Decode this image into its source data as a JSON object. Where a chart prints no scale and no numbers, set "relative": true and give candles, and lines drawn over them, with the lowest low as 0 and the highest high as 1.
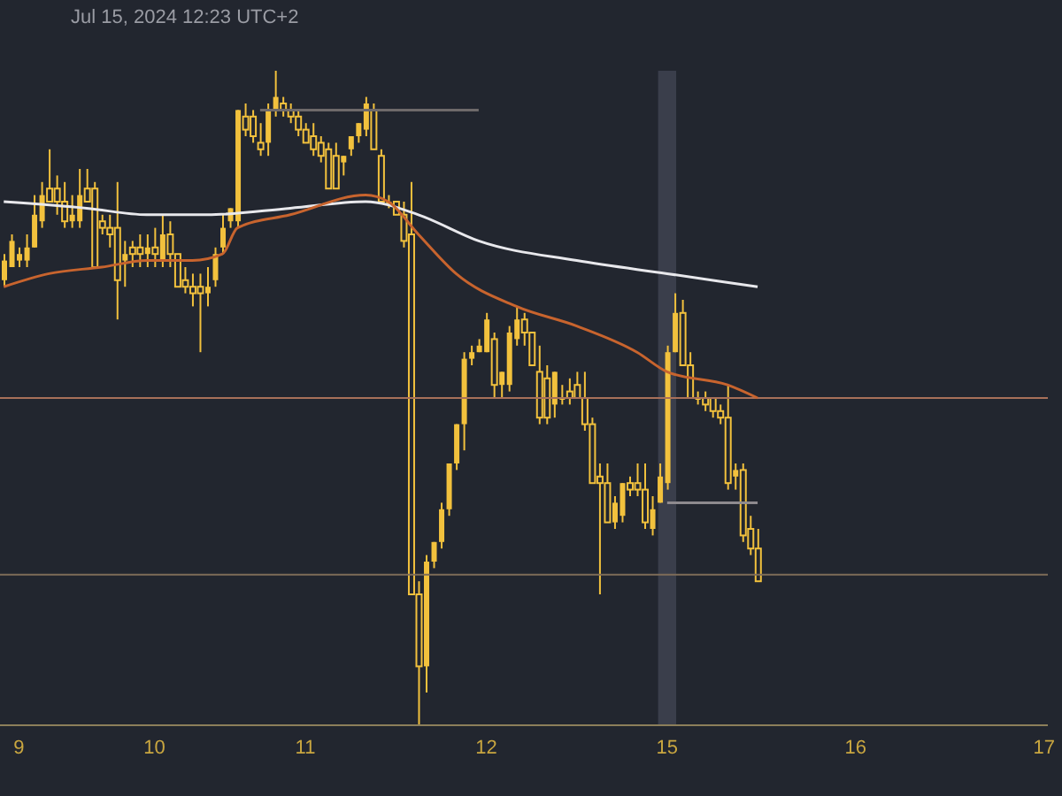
{
  "chart_data": {
    "type": "candlestick",
    "relative": true,
    "color": "#f2c13d",
    "annotations": [
      "Jul 15, 2024 12:23 UTC+2"
    ],
    "categories": [
      null,
      null,
      "9",
      null,
      null,
      null,
      null,
      null,
      null,
      null,
      null,
      null,
      null,
      null,
      null,
      null,
      null,
      null,
      null,
      null,
      "10",
      null,
      null,
      null,
      null,
      null,
      null,
      null,
      null,
      null,
      null,
      null,
      null,
      null,
      null,
      null,
      null,
      null,
      null,
      null,
      "11",
      null,
      null,
      null,
      null,
      null,
      null,
      null,
      null,
      null,
      null,
      null,
      null,
      null,
      null,
      null,
      null,
      null,
      null,
      null,
      null,
      null,
      null,
      null,
      "12",
      null,
      null,
      null,
      null,
      null,
      null,
      null,
      null,
      null,
      null,
      null,
      null,
      null,
      null,
      null,
      null,
      null,
      null,
      null,
      null,
      null,
      null,
      null,
      "15",
      null,
      null,
      null,
      null,
      null,
      null,
      null,
      null,
      null,
      null,
      null,
      null,
      null,
      null,
      null,
      null,
      null,
      null,
      null,
      null,
      null,
      null,
      null,
      null,
      "16",
      null,
      null,
      null,
      null,
      null,
      null,
      null,
      null,
      null,
      null,
      null,
      null,
      null,
      null,
      null,
      null,
      null,
      null,
      null,
      null,
      null,
      null,
      null,
      null,
      "17"
    ],
    "ohlc": [
      [
        0.68,
        0.72,
        0.67,
        0.71
      ],
      [
        0.7,
        0.75,
        0.7,
        0.74
      ],
      [
        0.71,
        0.73,
        0.7,
        0.72
      ],
      [
        0.71,
        0.75,
        0.7,
        0.73
      ],
      [
        0.73,
        0.81,
        0.73,
        0.78
      ],
      [
        0.77,
        0.83,
        0.76,
        0.81
      ],
      [
        0.82,
        0.88,
        0.8,
        0.8
      ],
      [
        0.82,
        0.84,
        0.78,
        0.8
      ],
      [
        0.8,
        0.83,
        0.76,
        0.77
      ],
      [
        0.77,
        0.81,
        0.76,
        0.78
      ],
      [
        0.77,
        0.85,
        0.76,
        0.81
      ],
      [
        0.82,
        0.85,
        0.8,
        0.8
      ],
      [
        0.82,
        0.83,
        0.7,
        0.7
      ],
      [
        0.77,
        0.78,
        0.75,
        0.76
      ],
      [
        0.76,
        0.78,
        0.73,
        0.75
      ],
      [
        0.76,
        0.83,
        0.62,
        0.68
      ],
      [
        0.71,
        0.74,
        0.67,
        0.72
      ],
      [
        0.73,
        0.74,
        0.7,
        0.72
      ],
      [
        0.73,
        0.75,
        0.7,
        0.72
      ],
      [
        0.72,
        0.75,
        0.7,
        0.73
      ],
      [
        0.73,
        0.76,
        0.7,
        0.72
      ],
      [
        0.71,
        0.78,
        0.7,
        0.75
      ],
      [
        0.75,
        0.77,
        0.7,
        0.72
      ],
      [
        0.72,
        0.72,
        0.67,
        0.67
      ],
      [
        0.68,
        0.7,
        0.66,
        0.67
      ],
      [
        0.67,
        0.69,
        0.64,
        0.66
      ],
      [
        0.67,
        0.69,
        0.57,
        0.66
      ],
      [
        0.66,
        0.7,
        0.64,
        0.67
      ],
      [
        0.68,
        0.73,
        0.67,
        0.72
      ],
      [
        0.73,
        0.78,
        0.72,
        0.76
      ],
      [
        0.77,
        0.79,
        0.76,
        0.79
      ],
      [
        0.77,
        0.94,
        0.76,
        0.94
      ],
      [
        0.93,
        0.95,
        0.9,
        0.91
      ],
      [
        0.93,
        0.94,
        0.89,
        0.9
      ],
      [
        0.89,
        0.92,
        0.87,
        0.88
      ],
      [
        0.89,
        0.95,
        0.87,
        0.94
      ],
      [
        0.94,
        1.0,
        0.93,
        0.96
      ],
      [
        0.95,
        0.96,
        0.93,
        0.94
      ],
      [
        0.94,
        0.95,
        0.92,
        0.93
      ],
      [
        0.93,
        0.94,
        0.9,
        0.91
      ],
      [
        0.91,
        0.92,
        0.89,
        0.89
      ],
      [
        0.9,
        0.92,
        0.87,
        0.88
      ],
      [
        0.89,
        0.9,
        0.86,
        0.87
      ],
      [
        0.88,
        0.89,
        0.82,
        0.82
      ],
      [
        0.87,
        0.89,
        0.82,
        0.82
      ],
      [
        0.86,
        0.87,
        0.84,
        0.87
      ],
      [
        0.88,
        0.9,
        0.87,
        0.9
      ],
      [
        0.9,
        0.92,
        0.89,
        0.92
      ],
      [
        0.91,
        0.96,
        0.9,
        0.95
      ],
      [
        0.94,
        0.95,
        0.88,
        0.88
      ],
      [
        0.87,
        0.88,
        0.8,
        0.8
      ],
      [
        0.8,
        0.81,
        0.79,
        0.8
      ],
      [
        0.8,
        0.8,
        0.78,
        0.78
      ],
      [
        0.78,
        0.8,
        0.73,
        0.74
      ],
      [
        0.75,
        0.83,
        0.2,
        0.2
      ],
      [
        0.2,
        0.22,
        0,
        0.09
      ],
      [
        0.09,
        0.26,
        0.05,
        0.25
      ],
      [
        0.25,
        0.28,
        0.24,
        0.28
      ],
      [
        0.28,
        0.34,
        0.27,
        0.33
      ],
      [
        0.33,
        0.4,
        0.32,
        0.4
      ],
      [
        0.4,
        0.46,
        0.39,
        0.46
      ],
      [
        0.46,
        0.57,
        0.42,
        0.56
      ],
      [
        0.56,
        0.58,
        0.55,
        0.57
      ],
      [
        0.57,
        0.59,
        0.57,
        0.58
      ],
      [
        0.57,
        0.63,
        0.57,
        0.62
      ],
      [
        0.59,
        0.6,
        0.5,
        0.52
      ],
      [
        0.52,
        0.54,
        0.5,
        0.54
      ],
      [
        0.52,
        0.61,
        0.51,
        0.6
      ],
      [
        0.59,
        0.64,
        0.58,
        0.62
      ],
      [
        0.62,
        0.63,
        0.58,
        0.6
      ],
      [
        0.6,
        0.6,
        0.55,
        0.55
      ],
      [
        0.54,
        0.58,
        0.46,
        0.47
      ],
      [
        0.53,
        0.55,
        0.46,
        0.47
      ],
      [
        0.49,
        0.54,
        0.47,
        0.54
      ],
      [
        0.5,
        0.52,
        0.49,
        0.5
      ],
      [
        0.51,
        0.53,
        0.49,
        0.5
      ],
      [
        0.52,
        0.54,
        0.5,
        0.5
      ],
      [
        0.5,
        0.54,
        0.45,
        0.46
      ],
      [
        0.46,
        0.47,
        0.37,
        0.37
      ],
      [
        0.38,
        0.4,
        0.2,
        0.37
      ],
      [
        0.37,
        0.4,
        0.31,
        0.31
      ],
      [
        0.31,
        0.35,
        0.3,
        0.34
      ],
      [
        0.32,
        0.37,
        0.31,
        0.37
      ],
      [
        0.37,
        0.38,
        0.35,
        0.36
      ],
      [
        0.37,
        0.4,
        0.35,
        0.36
      ],
      [
        0.36,
        0.4,
        0.3,
        0.31
      ],
      [
        0.3,
        0.35,
        0.29,
        0.33
      ],
      [
        0.34,
        0.4,
        0.34,
        0.38
      ],
      [
        0.37,
        0.58,
        0.36,
        0.57
      ],
      [
        0.57,
        0.66,
        0.57,
        0.63
      ],
      [
        0.63,
        0.65,
        0.55,
        0.55
      ],
      [
        0.55,
        0.57,
        0.5,
        0.5
      ],
      [
        0.5,
        0.51,
        0.49,
        0.5
      ],
      [
        0.5,
        0.51,
        0.48,
        0.49
      ],
      [
        0.5,
        0.5,
        0.47,
        0.48
      ],
      [
        0.48,
        0.49,
        0.46,
        0.47
      ],
      [
        0.47,
        0.52,
        0.36,
        0.37
      ],
      [
        0.38,
        0.4,
        0.36,
        0.39
      ],
      [
        0.39,
        0.4,
        0.28,
        0.29
      ],
      [
        0.3,
        0.32,
        0.26,
        0.27
      ],
      [
        0.27,
        0.3,
        0.22,
        0.22
      ],
      null,
      null,
      null,
      null,
      null,
      null,
      null,
      null,
      null,
      null,
      null,
      null,
      null,
      null,
      null,
      null,
      null,
      null,
      null,
      null,
      null,
      null,
      null,
      null,
      null,
      null,
      null,
      null,
      null,
      null,
      null,
      null,
      null,
      null,
      null,
      null,
      null,
      null
    ],
    "series": [
      {
        "type": "line",
        "color": "#e8e8ec",
        "values": [
          0.8,
          null,
          null,
          null,
          null,
          null,
          null,
          null,
          null,
          null,
          null,
          0.79,
          null,
          null,
          null,
          null,
          null,
          null,
          null,
          0.78,
          null,
          null,
          null,
          null,
          null,
          null,
          null,
          0.78,
          null,
          null,
          null,
          null,
          null,
          null,
          null,
          null,
          null,
          null,
          0.79,
          null,
          null,
          null,
          null,
          null,
          null,
          null,
          null,
          null,
          0.8,
          null,
          null,
          null,
          null,
          null,
          null,
          0.78,
          null,
          null,
          null,
          null,
          null,
          null,
          null,
          0.74,
          null,
          null,
          null,
          null,
          null,
          null,
          null,
          null,
          null,
          null,
          null,
          null,
          0.71,
          null,
          null,
          null,
          null,
          null,
          null,
          null,
          null,
          null,
          null,
          null,
          0.69,
          null,
          null,
          null,
          null,
          null,
          null,
          null,
          null,
          null,
          null,
          null,
          0.67,
          null,
          null,
          null,
          null,
          null,
          null,
          null,
          null,
          null,
          null,
          null,
          null,
          null,
          null,
          null,
          null,
          null,
          null,
          null,
          null,
          null,
          null,
          null,
          null,
          null,
          null,
          null,
          null,
          null,
          null,
          null,
          null,
          null,
          null,
          null,
          null,
          null,
          null
        ]
      },
      {
        "type": "line",
        "color": "#c8642e",
        "values": [
          0.67,
          null,
          null,
          null,
          null,
          null,
          0.69,
          null,
          null,
          null,
          null,
          null,
          null,
          0.7,
          null,
          null,
          null,
          null,
          null,
          0.71,
          null,
          null,
          null,
          null,
          null,
          0.71,
          null,
          null,
          null,
          0.72,
          null,
          0.76,
          null,
          null,
          null,
          null,
          null,
          null,
          0.78,
          null,
          null,
          null,
          null,
          null,
          null,
          null,
          null,
          null,
          0.81,
          null,
          null,
          0.8,
          null,
          null,
          null,
          0.75,
          null,
          null,
          null,
          null,
          0.69,
          null,
          null,
          null,
          null,
          null,
          null,
          null,
          0.64,
          null,
          null,
          null,
          null,
          null,
          null,
          null,
          0.61,
          null,
          null,
          null,
          null,
          null,
          null,
          null,
          0.57,
          null,
          null,
          null,
          0.54,
          null,
          null,
          null,
          null,
          null,
          null,
          null,
          0.52,
          null,
          null,
          null,
          0.5,
          null,
          null,
          null,
          null,
          null,
          null,
          null,
          null,
          null,
          null,
          null,
          null,
          null,
          null,
          null,
          null,
          null,
          null,
          null,
          null,
          null,
          null,
          null,
          null,
          null,
          null,
          null,
          null,
          null,
          null,
          null,
          null,
          null,
          null,
          null,
          null,
          null,
          null
        ]
      },
      {
        "type": "line",
        "color": "#6e6a6a",
        "values": [
          null,
          null,
          null,
          null,
          null,
          null,
          null,
          null,
          null,
          null,
          null,
          null,
          null,
          null,
          null,
          null,
          null,
          null,
          null,
          null,
          null,
          null,
          null,
          null,
          null,
          null,
          null,
          null,
          null,
          null,
          null,
          null,
          null,
          null,
          0.94,
          null,
          null,
          null,
          null,
          null,
          null,
          null,
          null,
          null,
          null,
          null,
          null,
          null,
          null,
          null,
          null,
          null,
          null,
          null,
          null,
          null,
          null,
          null,
          null,
          null,
          null,
          null,
          null,
          0.94,
          null,
          null,
          null,
          null,
          null,
          null,
          null,
          null,
          null,
          null,
          null,
          null,
          null,
          null,
          null,
          null,
          null,
          null,
          null,
          null,
          null,
          null,
          null,
          null,
          null,
          null,
          null,
          null,
          null,
          null,
          null,
          null,
          null,
          null,
          null,
          null,
          null,
          null,
          null,
          null,
          null,
          null,
          null,
          null,
          null,
          null,
          null,
          null,
          null,
          null,
          null,
          null,
          null,
          null,
          null,
          null,
          null,
          null,
          null,
          null,
          null,
          null,
          null,
          null,
          null,
          null,
          null,
          null,
          null,
          null,
          null,
          null,
          null,
          null,
          null
        ]
      },
      {
        "type": "line",
        "color": "#8e8a8e",
        "values": [
          null,
          null,
          null,
          null,
          null,
          null,
          null,
          null,
          null,
          null,
          null,
          null,
          null,
          null,
          null,
          null,
          null,
          null,
          null,
          null,
          null,
          null,
          null,
          null,
          null,
          null,
          null,
          null,
          null,
          null,
          null,
          null,
          null,
          null,
          null,
          null,
          null,
          null,
          null,
          null,
          null,
          null,
          null,
          null,
          null,
          null,
          null,
          null,
          null,
          null,
          null,
          null,
          null,
          null,
          null,
          null,
          null,
          null,
          null,
          null,
          null,
          null,
          null,
          null,
          null,
          null,
          null,
          null,
          null,
          null,
          null,
          null,
          null,
          null,
          null,
          null,
          null,
          null,
          null,
          null,
          null,
          null,
          null,
          null,
          null,
          null,
          null,
          null,
          0.34,
          null,
          null,
          null,
          null,
          null,
          null,
          null,
          null,
          null,
          null,
          null,
          0.34,
          null,
          null,
          null,
          null,
          null,
          null,
          null,
          null,
          null,
          null,
          null,
          null,
          null,
          null,
          null,
          null,
          null,
          null,
          null,
          null,
          null,
          null,
          null,
          null,
          null,
          null,
          null,
          null,
          null,
          null,
          null,
          null,
          null,
          null,
          null,
          null,
          null,
          null
        ]
      }
    ],
    "ref_lines": [
      {
        "axis": "y",
        "value": 0.5,
        "color": "#a8705a"
      },
      {
        "axis": "y",
        "value": 0.23,
        "color": "#7e6c58"
      }
    ],
    "bands": [
      {
        "axis": "x",
        "from": "15",
        "to": "15",
        "color": "#3a3e4b"
      }
    ]
  }
}
